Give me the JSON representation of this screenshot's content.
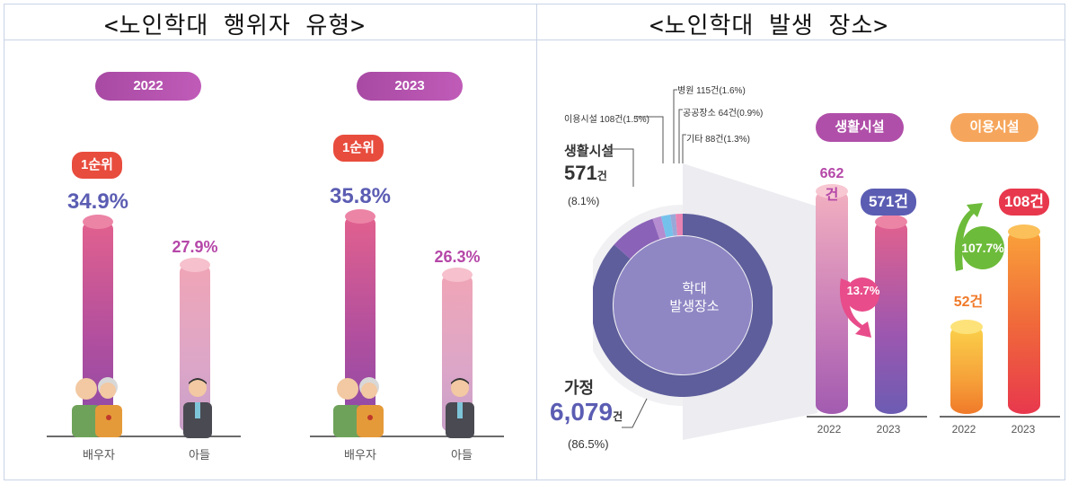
{
  "left": {
    "title": "<노인학대 행위자 유형>",
    "years": [
      "2022",
      "2023"
    ],
    "rank_label": "1순위",
    "categories": [
      "배우자",
      "아들"
    ]
  },
  "right": {
    "title": "<노인학대 발생 장소>",
    "donut_center": [
      "학대",
      "발생장소"
    ],
    "donut_labels": {
      "hospital": "병원 115건(1.6%)",
      "facility_use": "이용시설 108건(1.5%)",
      "public": "공공장소 64건(0.9%)",
      "other": "기타 88건(1.3%)",
      "living_name": "생활시설",
      "living_count": "571",
      "living_unit": "건",
      "living_pct": "(8.1%)",
      "home_name": "가정",
      "home_count": "6,079",
      "home_unit": "건",
      "home_pct": "(86.5%)"
    },
    "living_facility": {
      "title": "생활시설",
      "change": "13.7%",
      "labels": [
        "662건",
        "571건"
      ]
    },
    "use_facility": {
      "title": "이용시설",
      "change": "107.7%",
      "labels": [
        "52건",
        "108건"
      ]
    },
    "years": [
      "2022",
      "2023"
    ]
  },
  "chart_data": [
    {
      "type": "bar",
      "title": "<노인학대 행위자 유형>",
      "categories": [
        "배우자",
        "아들"
      ],
      "series": [
        {
          "name": "2022",
          "values": [
            34.9,
            27.9
          ]
        },
        {
          "name": "2023",
          "values": [
            35.8,
            26.3
          ]
        }
      ],
      "value_labels": {
        "2022": [
          "34.9%",
          "27.9%"
        ],
        "2023": [
          "35.8%",
          "26.3%"
        ]
      },
      "unit": "%",
      "ylim": [
        0,
        40
      ],
      "grid": false
    },
    {
      "type": "pie",
      "title": "<노인학대 발생 장소>",
      "categories": [
        "가정",
        "생활시설",
        "이용시설",
        "병원",
        "공공장소",
        "기타"
      ],
      "values": [
        6079,
        571,
        108,
        115,
        64,
        88
      ],
      "percents": [
        86.5,
        8.1,
        1.5,
        1.6,
        0.9,
        1.3
      ],
      "colors": [
        "#5e5e9c",
        "#8a63b8",
        "#b58cd0",
        "#74c2ec",
        "#9aa8d8",
        "#e884b3"
      ]
    },
    {
      "type": "bar",
      "title": "생활시설",
      "categories": [
        "2022",
        "2023"
      ],
      "values": [
        662,
        571
      ],
      "value_labels": [
        "662건",
        "571건"
      ],
      "annotation": "13.7%",
      "ylim": [
        0,
        700
      ]
    },
    {
      "type": "bar",
      "title": "이용시설",
      "categories": [
        "2022",
        "2023"
      ],
      "values": [
        52,
        108
      ],
      "value_labels": [
        "52건",
        "108건"
      ],
      "annotation": "107.7%",
      "ylim": [
        0,
        700
      ]
    }
  ],
  "colors": {
    "purple_pill": "#b04fa9",
    "rank_red": "#e84c3d",
    "value_blue": "#5b5db3",
    "value_pink": "#b547a8",
    "orange_pill": "#f6a65c"
  }
}
